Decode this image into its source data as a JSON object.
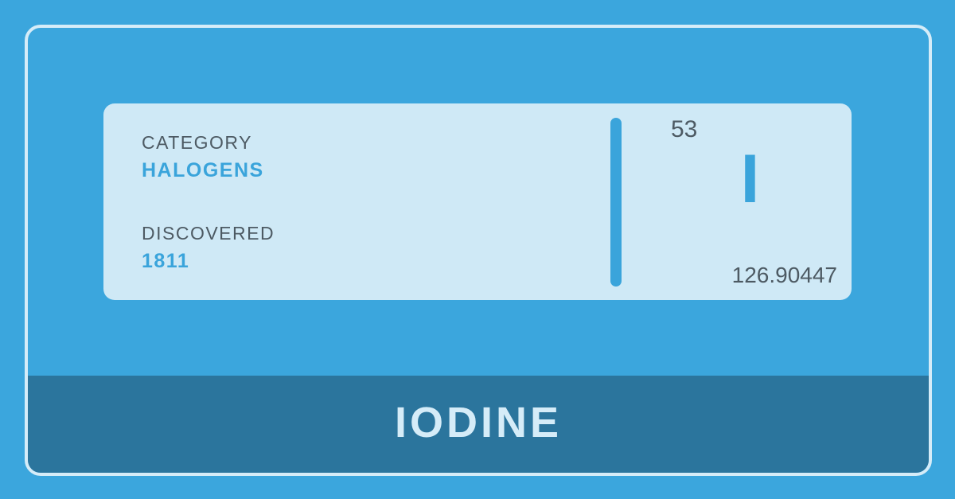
{
  "card": {
    "category_label": "CATEGORY",
    "category_value": "HALOGENS",
    "discovered_label": "DISCOVERED",
    "discovered_value": "1811"
  },
  "element": {
    "atomic_number": "53",
    "symbol": "I",
    "atomic_mass": "126.90447",
    "name": "IODINE"
  },
  "colors": {
    "background": "#3ba6dd",
    "card": "#cfe9f6",
    "accent": "#3aa4db",
    "name_bar": "#2b759d",
    "text_dark": "#4d5a63",
    "text_light": "#d5ecf8"
  }
}
